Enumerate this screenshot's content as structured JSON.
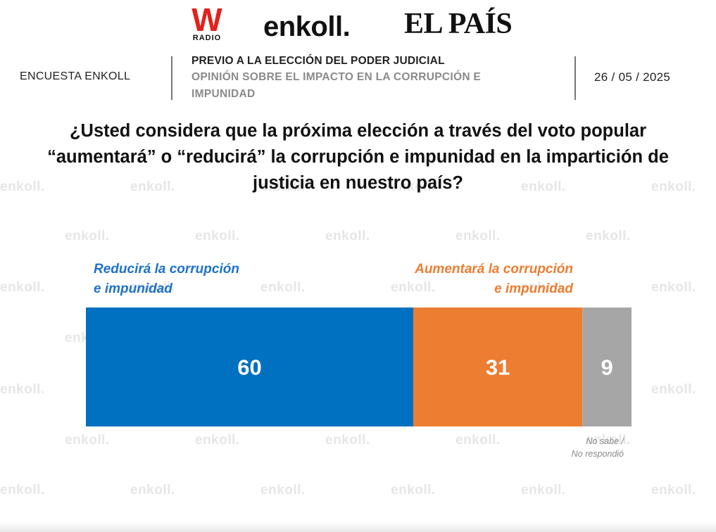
{
  "logos": {
    "wradio_mark": "W",
    "wradio_sub": "RADIO",
    "enkoll": "enkoll.",
    "elpais": "EL PAÍS"
  },
  "header": {
    "left": "ENCUESTA ENKOLL",
    "title": "PREVIO A LA ELECCIÓN DEL PODER JUDICIAL",
    "subtitle": "OPINIÓN SOBRE EL IMPACTO EN LA CORRUPCIÓN E IMPUNIDAD",
    "date": "26 / 05 / 2025"
  },
  "question": {
    "line1": "¿Usted considera que la próxima elección a través del voto popular",
    "line2": "“aumentará” o “reducirá” la corrupción e impunidad en la impartición de",
    "line3": "justicia en nuestro país?"
  },
  "watermark": "enkoll.",
  "colors": {
    "blue": "#0070c0",
    "orange": "#ed7d31",
    "gray": "#a6a6a6",
    "blue_label": "#1f72c8",
    "orange_label": "#ec7d31"
  },
  "chart_data": {
    "type": "bar",
    "orientation": "horizontal-stacked",
    "total": 100,
    "series": [
      {
        "name": "Reducirá la corrupción e impunidad",
        "value": 60
      },
      {
        "name": "Aumentará la corrupción e impunidad",
        "value": 31
      },
      {
        "name": "No sabe / No respondió",
        "value": 9
      }
    ],
    "labels": {
      "blue_line1": "Reducirá la corrupción",
      "blue_line2": "e impunidad",
      "orange_line1": "Aumentará la corrupción",
      "orange_line2": "e impunidad",
      "gray_line1": "No sabe /",
      "gray_line2": "No respondió"
    }
  }
}
